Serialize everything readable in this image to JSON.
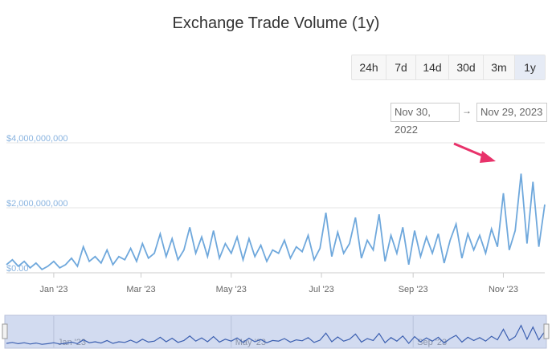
{
  "page": {
    "title": "Exchange Trade Volume (1y)"
  },
  "range_selector": {
    "buttons": [
      "24h",
      "7d",
      "14d",
      "30d",
      "3m",
      "1y"
    ],
    "selected": "1y",
    "from": "Nov 30, 2022",
    "to": "Nov 29, 2023",
    "separator": "→"
  },
  "colors": {
    "line": "#6fa8dc",
    "navigator_fill": "#d2dbf0",
    "navigator_line": "#3b5fb0",
    "arrow": "#e8326a"
  },
  "chart_data": {
    "type": "line",
    "title": "Exchange Trade Volume (1y)",
    "y_ticks": [
      "$0.00",
      "$2,000,000,000",
      "$4,000,000,000"
    ],
    "ylim": [
      0,
      4000000000
    ],
    "x_ticks": [
      "Jan '23",
      "Mar '23",
      "May '23",
      "Jul '23",
      "Sep '23",
      "Nov '23"
    ],
    "x_range": [
      "2022-11-30",
      "2023-11-29"
    ],
    "grid": true,
    "annotations": [
      "arrow pointing to peak volume in early Nov '23"
    ],
    "series": [
      {
        "x": [
          "2022-11-30",
          "2022-12-04",
          "2022-12-08",
          "2022-12-12",
          "2022-12-16",
          "2022-12-20",
          "2022-12-24",
          "2022-12-28",
          "2023-01-01",
          "2023-01-05",
          "2023-01-09",
          "2023-01-13",
          "2023-01-17",
          "2023-01-21",
          "2023-01-25",
          "2023-01-29",
          "2023-02-02",
          "2023-02-06",
          "2023-02-10",
          "2023-02-14",
          "2023-02-18",
          "2023-02-22",
          "2023-02-26",
          "2023-03-02",
          "2023-03-06",
          "2023-03-10",
          "2023-03-14",
          "2023-03-18",
          "2023-03-22",
          "2023-03-26",
          "2023-03-30",
          "2023-04-03",
          "2023-04-07",
          "2023-04-11",
          "2023-04-15",
          "2023-04-19",
          "2023-04-23",
          "2023-04-27",
          "2023-05-01",
          "2023-05-05",
          "2023-05-09",
          "2023-05-13",
          "2023-05-17",
          "2023-05-21",
          "2023-05-25",
          "2023-05-29",
          "2023-06-02",
          "2023-06-06",
          "2023-06-10",
          "2023-06-14",
          "2023-06-18",
          "2023-06-22",
          "2023-06-26",
          "2023-06-30",
          "2023-07-04",
          "2023-07-08",
          "2023-07-12",
          "2023-07-16",
          "2023-07-20",
          "2023-07-24",
          "2023-07-28",
          "2023-08-01",
          "2023-08-05",
          "2023-08-09",
          "2023-08-13",
          "2023-08-17",
          "2023-08-21",
          "2023-08-25",
          "2023-08-29",
          "2023-09-02",
          "2023-09-06",
          "2023-09-10",
          "2023-09-14",
          "2023-09-18",
          "2023-09-22",
          "2023-09-26",
          "2023-09-30",
          "2023-10-04",
          "2023-10-08",
          "2023-10-12",
          "2023-10-16",
          "2023-10-20",
          "2023-10-24",
          "2023-10-28",
          "2023-11-01",
          "2023-11-05",
          "2023-11-09",
          "2023-11-13",
          "2023-11-17",
          "2023-11-21",
          "2023-11-25",
          "2023-11-29"
        ],
        "values": [
          250000000,
          400000000,
          200000000,
          350000000,
          150000000,
          300000000,
          100000000,
          200000000,
          350000000,
          150000000,
          250000000,
          450000000,
          200000000,
          800000000,
          350000000,
          500000000,
          300000000,
          700000000,
          250000000,
          500000000,
          400000000,
          750000000,
          350000000,
          900000000,
          450000000,
          600000000,
          1200000000,
          500000000,
          1050000000,
          400000000,
          700000000,
          1400000000,
          600000000,
          1100000000,
          500000000,
          1300000000,
          450000000,
          900000000,
          600000000,
          1100000000,
          400000000,
          1050000000,
          500000000,
          850000000,
          350000000,
          700000000,
          600000000,
          1000000000,
          450000000,
          800000000,
          650000000,
          1150000000,
          400000000,
          750000000,
          1850000000,
          500000000,
          1250000000,
          600000000,
          900000000,
          1700000000,
          450000000,
          1000000000,
          700000000,
          1800000000,
          350000000,
          1150000000,
          600000000,
          1400000000,
          250000000,
          1300000000,
          500000000,
          1100000000,
          600000000,
          1200000000,
          300000000,
          1000000000,
          1500000000,
          450000000,
          1200000000,
          700000000,
          1150000000,
          600000000,
          1350000000,
          800000000,
          2450000000,
          700000000,
          1300000000,
          3050000000,
          900000000,
          2800000000,
          800000000,
          2100000000
        ]
      }
    ]
  },
  "navigator": {
    "x_ticks": [
      "Jan '23",
      "May '23",
      "Sep '23"
    ],
    "window": [
      "2022-11-30",
      "2023-11-29"
    ]
  }
}
